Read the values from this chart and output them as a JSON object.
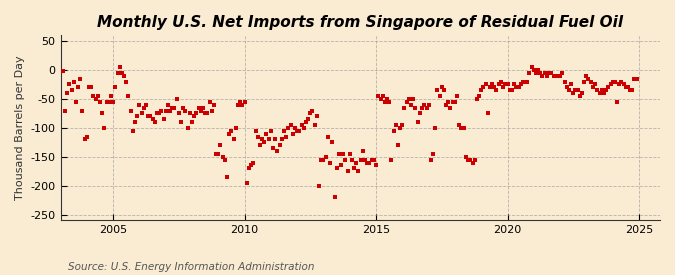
{
  "title": "Monthly U.S. Net Imports from Singapore of Residual Fuel Oil",
  "ylabel": "Thousand Barrels per Day",
  "source": "Source: U.S. Energy Information Administration",
  "background_color": "#faecd3",
  "marker_color": "#cc0000",
  "xlim": [
    2003.0,
    2025.8
  ],
  "ylim": [
    -260,
    60
  ],
  "yticks": [
    50,
    0,
    -50,
    -100,
    -150,
    -200,
    -250
  ],
  "xticks": [
    2005,
    2010,
    2015,
    2020,
    2025
  ],
  "title_fontsize": 11,
  "label_fontsize": 8,
  "tick_fontsize": 8,
  "source_fontsize": 7.5,
  "data": [
    [
      2003.08,
      -1
    ],
    [
      2003.17,
      -70
    ],
    [
      2003.25,
      -40
    ],
    [
      2003.33,
      -25
    ],
    [
      2003.42,
      -35
    ],
    [
      2003.5,
      -20
    ],
    [
      2003.58,
      -55
    ],
    [
      2003.67,
      -30
    ],
    [
      2003.75,
      -15
    ],
    [
      2003.83,
      -70
    ],
    [
      2003.92,
      -120
    ],
    [
      2004.0,
      -115
    ],
    [
      2004.08,
      -30
    ],
    [
      2004.17,
      -30
    ],
    [
      2004.25,
      -45
    ],
    [
      2004.33,
      -50
    ],
    [
      2004.42,
      -45
    ],
    [
      2004.5,
      -55
    ],
    [
      2004.58,
      -75
    ],
    [
      2004.67,
      -100
    ],
    [
      2004.75,
      -55
    ],
    [
      2004.83,
      -55
    ],
    [
      2004.92,
      -45
    ],
    [
      2005.0,
      -55
    ],
    [
      2005.08,
      -30
    ],
    [
      2005.17,
      -5
    ],
    [
      2005.25,
      5
    ],
    [
      2005.33,
      -5
    ],
    [
      2005.42,
      -10
    ],
    [
      2005.5,
      -20
    ],
    [
      2005.58,
      -45
    ],
    [
      2005.67,
      -70
    ],
    [
      2005.75,
      -105
    ],
    [
      2005.83,
      -90
    ],
    [
      2005.92,
      -80
    ],
    [
      2006.0,
      -60
    ],
    [
      2006.08,
      -75
    ],
    [
      2006.17,
      -65
    ],
    [
      2006.25,
      -60
    ],
    [
      2006.33,
      -80
    ],
    [
      2006.42,
      -80
    ],
    [
      2006.5,
      -85
    ],
    [
      2006.58,
      -90
    ],
    [
      2006.67,
      -75
    ],
    [
      2006.75,
      -75
    ],
    [
      2006.83,
      -70
    ],
    [
      2006.92,
      -85
    ],
    [
      2007.0,
      -70
    ],
    [
      2007.08,
      -60
    ],
    [
      2007.17,
      -70
    ],
    [
      2007.25,
      -65
    ],
    [
      2007.33,
      -65
    ],
    [
      2007.42,
      -50
    ],
    [
      2007.5,
      -75
    ],
    [
      2007.58,
      -90
    ],
    [
      2007.67,
      -65
    ],
    [
      2007.75,
      -70
    ],
    [
      2007.83,
      -100
    ],
    [
      2007.92,
      -75
    ],
    [
      2008.0,
      -90
    ],
    [
      2008.08,
      -80
    ],
    [
      2008.17,
      -75
    ],
    [
      2008.25,
      -65
    ],
    [
      2008.33,
      -70
    ],
    [
      2008.42,
      -65
    ],
    [
      2008.5,
      -75
    ],
    [
      2008.58,
      -75
    ],
    [
      2008.67,
      -55
    ],
    [
      2008.75,
      -70
    ],
    [
      2008.83,
      -60
    ],
    [
      2008.92,
      -145
    ],
    [
      2009.0,
      -145
    ],
    [
      2009.08,
      -130
    ],
    [
      2009.17,
      -150
    ],
    [
      2009.25,
      -155
    ],
    [
      2009.33,
      -185
    ],
    [
      2009.42,
      -110
    ],
    [
      2009.5,
      -105
    ],
    [
      2009.58,
      -120
    ],
    [
      2009.67,
      -100
    ],
    [
      2009.75,
      -60
    ],
    [
      2009.83,
      -55
    ],
    [
      2009.92,
      -60
    ],
    [
      2010.0,
      -55
    ],
    [
      2010.08,
      -195
    ],
    [
      2010.17,
      -170
    ],
    [
      2010.25,
      -165
    ],
    [
      2010.33,
      -160
    ],
    [
      2010.42,
      -105
    ],
    [
      2010.5,
      -115
    ],
    [
      2010.58,
      -130
    ],
    [
      2010.67,
      -120
    ],
    [
      2010.75,
      -125
    ],
    [
      2010.83,
      -110
    ],
    [
      2010.92,
      -120
    ],
    [
      2011.0,
      -105
    ],
    [
      2011.08,
      -135
    ],
    [
      2011.17,
      -120
    ],
    [
      2011.25,
      -140
    ],
    [
      2011.33,
      -130
    ],
    [
      2011.42,
      -120
    ],
    [
      2011.5,
      -105
    ],
    [
      2011.58,
      -115
    ],
    [
      2011.67,
      -100
    ],
    [
      2011.75,
      -95
    ],
    [
      2011.83,
      -110
    ],
    [
      2011.92,
      -100
    ],
    [
      2012.0,
      -105
    ],
    [
      2012.08,
      -105
    ],
    [
      2012.17,
      -95
    ],
    [
      2012.25,
      -100
    ],
    [
      2012.33,
      -90
    ],
    [
      2012.42,
      -85
    ],
    [
      2012.5,
      -75
    ],
    [
      2012.58,
      -70
    ],
    [
      2012.67,
      -95
    ],
    [
      2012.75,
      -80
    ],
    [
      2012.83,
      -200
    ],
    [
      2012.92,
      -155
    ],
    [
      2013.0,
      -155
    ],
    [
      2013.08,
      -150
    ],
    [
      2013.17,
      -115
    ],
    [
      2013.25,
      -160
    ],
    [
      2013.33,
      -125
    ],
    [
      2013.42,
      -220
    ],
    [
      2013.5,
      -170
    ],
    [
      2013.58,
      -145
    ],
    [
      2013.67,
      -165
    ],
    [
      2013.75,
      -145
    ],
    [
      2013.83,
      -155
    ],
    [
      2013.92,
      -175
    ],
    [
      2014.0,
      -145
    ],
    [
      2014.08,
      -155
    ],
    [
      2014.17,
      -170
    ],
    [
      2014.25,
      -160
    ],
    [
      2014.33,
      -175
    ],
    [
      2014.42,
      -155
    ],
    [
      2014.5,
      -140
    ],
    [
      2014.58,
      -155
    ],
    [
      2014.67,
      -160
    ],
    [
      2014.75,
      -160
    ],
    [
      2014.83,
      -155
    ],
    [
      2014.92,
      -155
    ],
    [
      2015.0,
      -165
    ],
    [
      2015.08,
      -45
    ],
    [
      2015.17,
      -50
    ],
    [
      2015.25,
      -45
    ],
    [
      2015.33,
      -55
    ],
    [
      2015.42,
      -50
    ],
    [
      2015.5,
      -55
    ],
    [
      2015.58,
      -155
    ],
    [
      2015.67,
      -105
    ],
    [
      2015.75,
      -95
    ],
    [
      2015.83,
      -130
    ],
    [
      2015.92,
      -100
    ],
    [
      2016.0,
      -95
    ],
    [
      2016.08,
      -65
    ],
    [
      2016.17,
      -55
    ],
    [
      2016.25,
      -50
    ],
    [
      2016.33,
      -60
    ],
    [
      2016.42,
      -50
    ],
    [
      2016.5,
      -65
    ],
    [
      2016.58,
      -90
    ],
    [
      2016.67,
      -75
    ],
    [
      2016.75,
      -65
    ],
    [
      2016.83,
      -60
    ],
    [
      2016.92,
      -65
    ],
    [
      2017.0,
      -60
    ],
    [
      2017.08,
      -155
    ],
    [
      2017.17,
      -145
    ],
    [
      2017.25,
      -100
    ],
    [
      2017.33,
      -35
    ],
    [
      2017.42,
      -45
    ],
    [
      2017.5,
      -30
    ],
    [
      2017.58,
      -35
    ],
    [
      2017.67,
      -60
    ],
    [
      2017.75,
      -55
    ],
    [
      2017.83,
      -65
    ],
    [
      2017.92,
      -55
    ],
    [
      2018.0,
      -55
    ],
    [
      2018.08,
      -45
    ],
    [
      2018.17,
      -95
    ],
    [
      2018.25,
      -100
    ],
    [
      2018.33,
      -100
    ],
    [
      2018.42,
      -150
    ],
    [
      2018.5,
      -155
    ],
    [
      2018.58,
      -155
    ],
    [
      2018.67,
      -160
    ],
    [
      2018.75,
      -155
    ],
    [
      2018.83,
      -50
    ],
    [
      2018.92,
      -45
    ],
    [
      2019.0,
      -35
    ],
    [
      2019.08,
      -30
    ],
    [
      2019.17,
      -25
    ],
    [
      2019.25,
      -75
    ],
    [
      2019.33,
      -30
    ],
    [
      2019.42,
      -25
    ],
    [
      2019.5,
      -30
    ],
    [
      2019.58,
      -35
    ],
    [
      2019.67,
      -25
    ],
    [
      2019.75,
      -20
    ],
    [
      2019.83,
      -30
    ],
    [
      2019.92,
      -25
    ],
    [
      2020.0,
      -25
    ],
    [
      2020.08,
      -35
    ],
    [
      2020.17,
      -35
    ],
    [
      2020.25,
      -25
    ],
    [
      2020.33,
      -30
    ],
    [
      2020.42,
      -30
    ],
    [
      2020.5,
      -25
    ],
    [
      2020.58,
      -20
    ],
    [
      2020.67,
      -20
    ],
    [
      2020.75,
      -20
    ],
    [
      2020.83,
      -5
    ],
    [
      2020.92,
      5
    ],
    [
      2021.0,
      0
    ],
    [
      2021.08,
      -5
    ],
    [
      2021.17,
      0
    ],
    [
      2021.25,
      -5
    ],
    [
      2021.33,
      -10
    ],
    [
      2021.42,
      -5
    ],
    [
      2021.5,
      -10
    ],
    [
      2021.58,
      -5
    ],
    [
      2021.67,
      -5
    ],
    [
      2021.75,
      -10
    ],
    [
      2021.83,
      -10
    ],
    [
      2021.92,
      -10
    ],
    [
      2022.0,
      -10
    ],
    [
      2022.08,
      -5
    ],
    [
      2022.17,
      -20
    ],
    [
      2022.25,
      -30
    ],
    [
      2022.33,
      -35
    ],
    [
      2022.42,
      -25
    ],
    [
      2022.5,
      -40
    ],
    [
      2022.58,
      -35
    ],
    [
      2022.67,
      -35
    ],
    [
      2022.75,
      -45
    ],
    [
      2022.83,
      -40
    ],
    [
      2022.92,
      -20
    ],
    [
      2023.0,
      -10
    ],
    [
      2023.08,
      -15
    ],
    [
      2023.17,
      -20
    ],
    [
      2023.25,
      -30
    ],
    [
      2023.33,
      -25
    ],
    [
      2023.42,
      -35
    ],
    [
      2023.5,
      -40
    ],
    [
      2023.58,
      -35
    ],
    [
      2023.67,
      -40
    ],
    [
      2023.75,
      -35
    ],
    [
      2023.83,
      -30
    ],
    [
      2023.92,
      -25
    ],
    [
      2024.0,
      -20
    ],
    [
      2024.08,
      -20
    ],
    [
      2024.17,
      -55
    ],
    [
      2024.25,
      -25
    ],
    [
      2024.33,
      -20
    ],
    [
      2024.42,
      -25
    ],
    [
      2024.5,
      -30
    ],
    [
      2024.58,
      -30
    ],
    [
      2024.67,
      -35
    ],
    [
      2024.75,
      -35
    ],
    [
      2024.83,
      -15
    ],
    [
      2024.92,
      -15
    ]
  ]
}
